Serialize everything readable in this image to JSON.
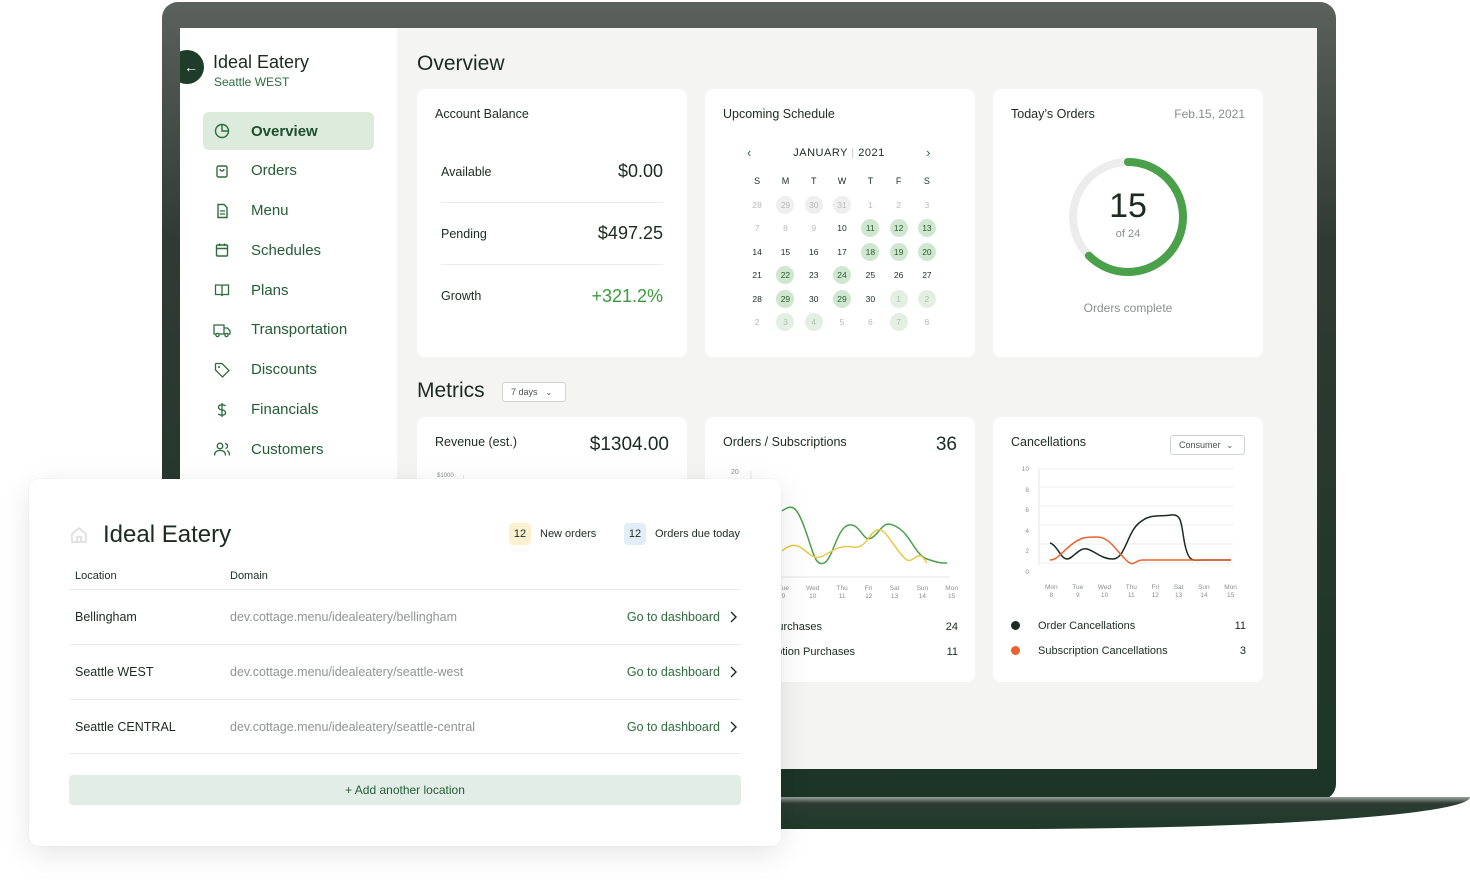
{
  "sidebar": {
    "brand_name": "Ideal Eatery",
    "brand_location": "Seattle WEST",
    "items": [
      {
        "label": "Overview",
        "icon": "pie-chart-icon",
        "active": true
      },
      {
        "label": "Orders",
        "icon": "bag-icon"
      },
      {
        "label": "Menu",
        "icon": "document-icon"
      },
      {
        "label": "Schedules",
        "icon": "calendar-icon"
      },
      {
        "label": "Plans",
        "icon": "book-icon"
      },
      {
        "label": "Transportation",
        "icon": "truck-icon"
      },
      {
        "label": "Discounts",
        "icon": "tag-icon"
      },
      {
        "label": "Financials",
        "icon": "dollar-icon"
      },
      {
        "label": "Customers",
        "icon": "users-icon"
      }
    ]
  },
  "overview": {
    "heading": "Overview",
    "account_balance": {
      "title": "Account Balance",
      "rows": [
        {
          "label": "Available",
          "value": "$0.00"
        },
        {
          "label": "Pending",
          "value": "$497.25"
        },
        {
          "label": "Growth",
          "value": "+321.2%"
        }
      ]
    },
    "schedule": {
      "title": "Upcoming Schedule",
      "month": "JANUARY",
      "year": "2021",
      "dow": [
        "S",
        "M",
        "T",
        "W",
        "T",
        "F",
        "S"
      ],
      "days": [
        {
          "d": "28",
          "s": "muted"
        },
        {
          "d": "29",
          "s": "mutedcirc"
        },
        {
          "d": "30",
          "s": "mutedcirc"
        },
        {
          "d": "31",
          "s": "mutedcirc"
        },
        {
          "d": "1",
          "s": "muted"
        },
        {
          "d": "2",
          "s": "muted"
        },
        {
          "d": "3",
          "s": "muted"
        },
        {
          "d": "7",
          "s": "muted"
        },
        {
          "d": "8",
          "s": "muted"
        },
        {
          "d": "9",
          "s": "muted"
        },
        {
          "d": "10",
          "s": ""
        },
        {
          "d": "11",
          "s": "hl"
        },
        {
          "d": "12",
          "s": "hl"
        },
        {
          "d": "13",
          "s": "hl"
        },
        {
          "d": "14",
          "s": ""
        },
        {
          "d": "15",
          "s": ""
        },
        {
          "d": "16",
          "s": ""
        },
        {
          "d": "17",
          "s": ""
        },
        {
          "d": "18",
          "s": "hl"
        },
        {
          "d": "19",
          "s": "hl"
        },
        {
          "d": "20",
          "s": "hl"
        },
        {
          "d": "21",
          "s": ""
        },
        {
          "d": "22",
          "s": "hl"
        },
        {
          "d": "23",
          "s": ""
        },
        {
          "d": "24",
          "s": "hl"
        },
        {
          "d": "25",
          "s": ""
        },
        {
          "d": "26",
          "s": ""
        },
        {
          "d": "27",
          "s": ""
        },
        {
          "d": "28",
          "s": ""
        },
        {
          "d": "29",
          "s": "hl"
        },
        {
          "d": "30",
          "s": ""
        },
        {
          "d": "29",
          "s": "hl"
        },
        {
          "d": "30",
          "s": ""
        },
        {
          "d": "1",
          "s": "hlm"
        },
        {
          "d": "2",
          "s": "hlm"
        },
        {
          "d": "2",
          "s": "muted"
        },
        {
          "d": "3",
          "s": "hlm"
        },
        {
          "d": "4",
          "s": "hlm"
        },
        {
          "d": "5",
          "s": "muted"
        },
        {
          "d": "6",
          "s": "muted"
        },
        {
          "d": "7",
          "s": "hlm"
        },
        {
          "d": "8",
          "s": "muted"
        }
      ]
    },
    "todays_orders": {
      "title": "Today’s Orders",
      "date": "Feb.15, 2021",
      "completed": "15",
      "total_label": "of 24",
      "progress": 0.625,
      "caption": "Orders complete"
    }
  },
  "metrics": {
    "heading": "Metrics",
    "range": "7 days",
    "revenue": {
      "title": "Revenue (est.)",
      "value": "$1304.00",
      "tick_top": "$1000"
    },
    "orders_subs": {
      "title": "Orders / Subscriptions",
      "total": "36",
      "y_top": "20",
      "x_days": [
        [
          "Tue",
          "9"
        ],
        [
          "Wed",
          "10"
        ],
        [
          "Thu",
          "11"
        ],
        [
          "Fri",
          "12"
        ],
        [
          "Sat",
          "13"
        ],
        [
          "Sun",
          "14"
        ],
        [
          "Mon",
          "15"
        ]
      ],
      "legend": [
        {
          "label": "Purchases",
          "value": "24"
        },
        {
          "label": "ription Purchases",
          "value": "11"
        }
      ]
    },
    "cancellations": {
      "title": "Cancellations",
      "filter": "Consumer",
      "y_ticks": [
        "10",
        "8",
        "6",
        "4",
        "2",
        "0"
      ],
      "x_days": [
        [
          "Mon",
          "8"
        ],
        [
          "Tue",
          "9"
        ],
        [
          "Wed",
          "10"
        ],
        [
          "Thu",
          "11"
        ],
        [
          "Fri",
          "12"
        ],
        [
          "Sat",
          "13"
        ],
        [
          "Sun",
          "14"
        ],
        [
          "Mon",
          "15"
        ]
      ],
      "legend": [
        {
          "label": "Order Cancellations",
          "value": "11",
          "color": "#1c2b22"
        },
        {
          "label": "Subscription Cancellations",
          "value": "3",
          "color": "#e8622f"
        }
      ]
    }
  },
  "panel": {
    "title": "Ideal Eatery",
    "new_orders_count": "12",
    "new_orders_label": "New orders",
    "due_count": "12",
    "due_label": "Orders due today",
    "col_location": "Location",
    "col_domain": "Domain",
    "rows": [
      {
        "location": "Bellingham",
        "domain": "dev.cottage.menu/idealeatery/bellingham",
        "action": "Go to dashboard"
      },
      {
        "location": "Seattle WEST",
        "domain": "dev.cottage.menu/idealeatery/seattle-west",
        "action": "Go to dashboard"
      },
      {
        "location": "Seattle CENTRAL",
        "domain": "dev.cottage.menu/idealeatery/seattle-central",
        "action": "Go to dashboard"
      }
    ],
    "add_label": "+ Add another location"
  },
  "colors": {
    "accent": "#2e6b3e",
    "ring": "#4aa14a",
    "highlight": "#dcebdc",
    "orange": "#e8622f",
    "yellow": "#e8c84a"
  }
}
